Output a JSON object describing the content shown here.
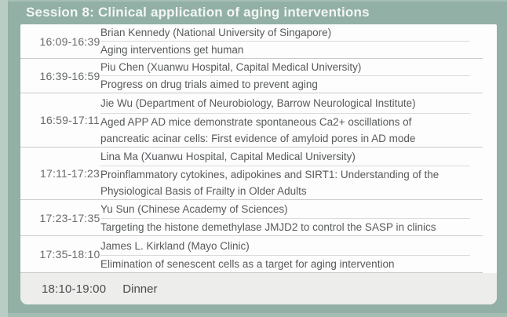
{
  "header": {
    "title": "Session 8: Clinical application of aging interventions"
  },
  "schedule": {
    "rows": [
      {
        "time": "16:09-16:39",
        "speaker": "Brian Kennedy (National University of Singapore)",
        "title": "Aging interventions get human"
      },
      {
        "time": "16:39-16:59",
        "speaker": "Piu Chen (Xuanwu Hospital, Capital Medical University)",
        "title": "Progress on drug trials aimed to prevent aging"
      },
      {
        "time": "16:59-17:11",
        "speaker": "Jie Wu (Department of Neurobiology, Barrow Neurological Institute)",
        "title": "Aged APP AD mice demonstrate spontaneous Ca2+ oscillations of\npancreatic acinar cells: First evidence of amyloid pores in AD mode"
      },
      {
        "time": "17:11-17:23",
        "speaker": "Lina Ma (Xuanwu Hospital, Capital Medical University)",
        "title": "Proinflammatory cytokines, adipokines and SIRT1: Understanding of the\nPhysiological Basis of Frailty in Older Adults"
      },
      {
        "time": "17:23-17:35",
        "speaker": "Yu Sun (Chinese Academy of Sciences)",
        "title": "Targeting the histone demethylase JMJD2 to control the SASP in clinics"
      },
      {
        "time": "17:35-18:10",
        "speaker": "James L. Kirkland (Mayo Clinic)",
        "title": "Elimination of senescent cells as a target for aging intervention"
      }
    ],
    "dinner": {
      "time": "18:10-19:00",
      "label": "Dinner"
    }
  },
  "colors": {
    "background_green": "#92b0a5",
    "left_strip_green": "#b9cdc4",
    "card_white": "#fcfdfc",
    "dinner_gray": "#ededec",
    "header_text": "#f3f6f4",
    "body_text": "#595a5c",
    "time_text": "#686a6c",
    "row_divider": "#c8ccc9",
    "inner_divider": "#d9dcda"
  }
}
